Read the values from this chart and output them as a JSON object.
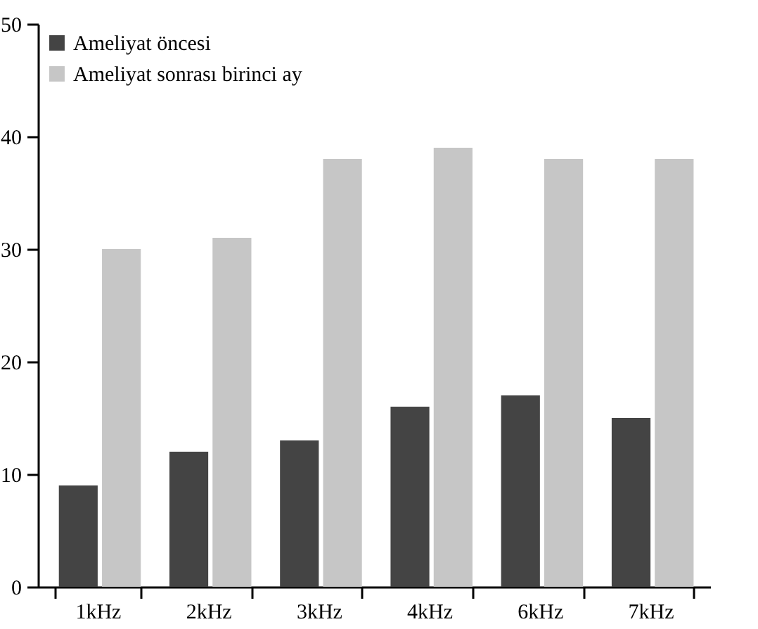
{
  "chart_data": {
    "type": "bar",
    "categories": [
      "1kHz",
      "2kHz",
      "3kHz",
      "4kHz",
      "6kHz",
      "7kHz"
    ],
    "series": [
      {
        "name": "Ameliyat öncesi",
        "color": "#444444",
        "values": [
          9,
          12,
          13,
          16,
          17,
          15
        ]
      },
      {
        "name": "Ameliyat sonrası birinci ay",
        "color": "#c6c6c6",
        "values": [
          30,
          31,
          38,
          39,
          38,
          38
        ]
      }
    ],
    "ylim": [
      0,
      50
    ],
    "yticks": [
      0,
      10,
      20,
      30,
      40,
      50
    ],
    "legend": "top left"
  }
}
